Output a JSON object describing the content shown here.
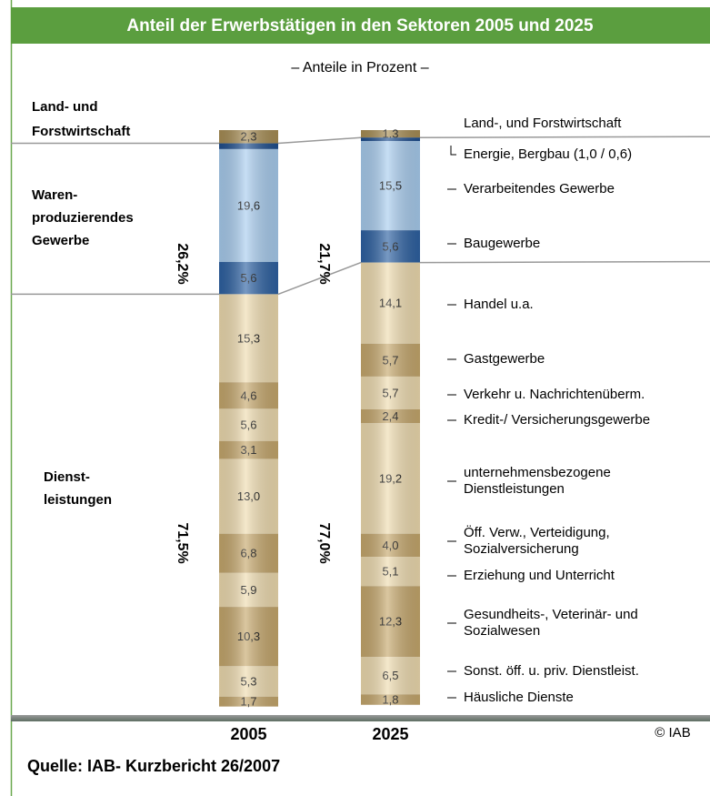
{
  "chart_data": {
    "type": "stacked-bar",
    "title": "Anteil der Erwerbstätigen in den Sektoren 2005 und 2025",
    "subtitle": "– Anteile in Prozent –",
    "categories": [
      "Land-, und Forstwirtschaft",
      "Energie, Bergbau (1,0 / 0,6)",
      "Verarbeitendes Gewerbe",
      "Baugewerbe",
      "Handel u.a.",
      "Gastgewerbe",
      "Verkehr u. Nachrichtenüberm.",
      "Kredit-/ Versicherungsgewerbe",
      "unternehmensbezogene\nDienstleistungen",
      "Öff. Verw., Verteidigung,\nSozialversicherung",
      "Erziehung und Unterricht",
      "Gesundheits-, Veterinär- und\nSozialwesen",
      "Sonst. öff. u. priv. Dienstleist.",
      "Häusliche Dienste"
    ],
    "colors": [
      "#a88e55",
      "#1f4f8f",
      "#a9cdef",
      "#2e62a3",
      "#efdcb0",
      "#c6a86d",
      "#efdcb0",
      "#c6a86d",
      "#efdcb0",
      "#c6a86d",
      "#efdcb0",
      "#c6a86d",
      "#efdcb0",
      "#c6a86d"
    ],
    "ylim": [
      0,
      100
    ],
    "series": [
      {
        "name": "2005",
        "values": [
          2.3,
          1.0,
          19.6,
          5.6,
          15.3,
          4.6,
          5.6,
          3.1,
          13.0,
          6.8,
          5.9,
          10.3,
          5.3,
          1.7
        ],
        "value_labels": [
          "2,3",
          null,
          "19,6",
          "5,6",
          "15,3",
          "4,6",
          "5,6",
          "3,1",
          "13,0",
          "6,8",
          "5,9",
          "10,3",
          "5,3",
          "1,7"
        ],
        "group_labels": [
          "26,2%",
          "71,5%"
        ]
      },
      {
        "name": "2025",
        "values": [
          1.3,
          0.6,
          15.5,
          5.6,
          14.1,
          5.7,
          5.7,
          2.4,
          19.2,
          4.0,
          5.1,
          12.3,
          6.5,
          1.8
        ],
        "value_labels": [
          "1,3",
          null,
          "15,5",
          "5,6",
          "14,1",
          "5,7",
          "5,7",
          "2,4",
          "19,2",
          "4,0",
          "5,1",
          "12,3",
          "6,5",
          "1,8"
        ],
        "group_labels": [
          "21,7%",
          "77,0%"
        ]
      }
    ],
    "sectors": [
      "Land- und\nForstwirtschaft",
      "Waren-\nproduzierendes\nGewerbe",
      "Dienst-\nleistungen"
    ],
    "copyright": "© IAB",
    "source": "Quelle: IAB- Kurzbericht  26/2007"
  }
}
